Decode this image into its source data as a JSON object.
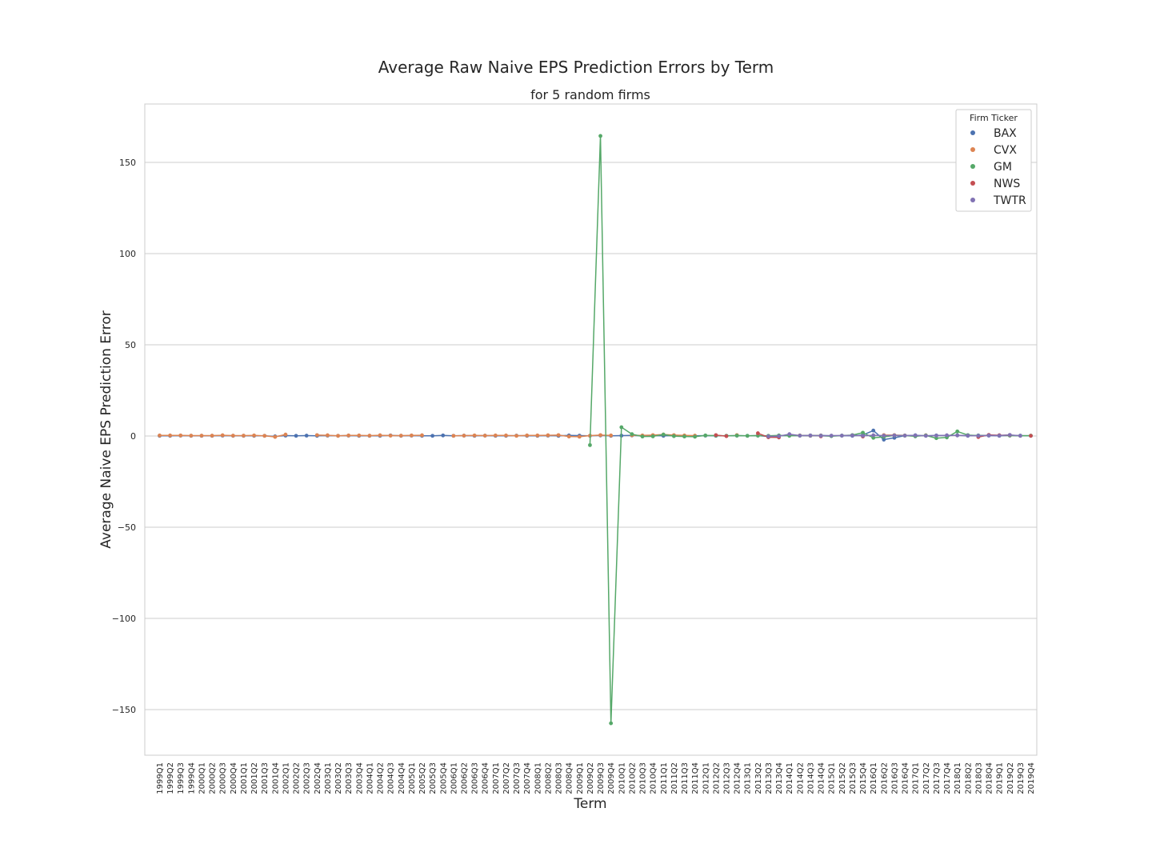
{
  "chart_data": {
    "type": "line",
    "title": "Average Raw Naive EPS Prediction Errors by Term",
    "subtitle": "for 5 random firms",
    "xlabel": "Term",
    "ylabel": "Average Naive EPS Prediction Error",
    "ylim": [
      -175,
      182
    ],
    "yticks": [
      150,
      100,
      50,
      0,
      -50,
      -100,
      -150
    ],
    "ytick_labels": [
      "150",
      "100",
      "50",
      "0",
      "−50",
      "−100",
      "−150"
    ],
    "grid": "horizontal",
    "legend": {
      "title": "Firm Ticker",
      "position": "top-right"
    },
    "categories": [
      "1999Q1",
      "1999Q2",
      "1999Q3",
      "1999Q4",
      "2000Q1",
      "2000Q2",
      "2000Q3",
      "2000Q4",
      "2001Q1",
      "2001Q2",
      "2001Q3",
      "2001Q4",
      "2002Q1",
      "2002Q2",
      "2002Q3",
      "2002Q4",
      "2003Q1",
      "2003Q2",
      "2003Q3",
      "2003Q4",
      "2004Q1",
      "2004Q2",
      "2004Q3",
      "2004Q4",
      "2005Q1",
      "2005Q2",
      "2005Q3",
      "2005Q4",
      "2006Q1",
      "2006Q2",
      "2006Q3",
      "2006Q4",
      "2007Q1",
      "2007Q2",
      "2007Q3",
      "2007Q4",
      "2008Q1",
      "2008Q2",
      "2008Q3",
      "2008Q4",
      "2009Q1",
      "2009Q2",
      "2009Q3",
      "2009Q4",
      "2010Q1",
      "2010Q2",
      "2010Q3",
      "2010Q4",
      "2011Q1",
      "2011Q2",
      "2011Q3",
      "2011Q4",
      "2012Q1",
      "2012Q2",
      "2012Q3",
      "2012Q4",
      "2013Q1",
      "2013Q2",
      "2013Q3",
      "2013Q4",
      "2014Q1",
      "2014Q2",
      "2014Q3",
      "2014Q4",
      "2015Q1",
      "2015Q2",
      "2015Q3",
      "2015Q4",
      "2016Q1",
      "2016Q2",
      "2016Q3",
      "2016Q4",
      "2017Q1",
      "2017Q2",
      "2017Q3",
      "2017Q4",
      "2018Q1",
      "2018Q2",
      "2018Q3",
      "2018Q4",
      "2019Q1",
      "2019Q2",
      "2019Q3",
      "2019Q4"
    ],
    "series": [
      {
        "name": "BAX",
        "color": "#4c72b0",
        "values": [
          0.1,
          0.1,
          0.2,
          0.1,
          0.1,
          0.1,
          0.2,
          0.1,
          0.1,
          0.1,
          0.1,
          -0.2,
          0.2,
          0.1,
          0.2,
          0.1,
          0.2,
          0.1,
          0.2,
          0.1,
          0.1,
          0.1,
          0.3,
          0.1,
          0.2,
          0.1,
          0.1,
          0.3,
          0.1,
          0.2,
          0.1,
          0.2,
          0.1,
          0.1,
          0.2,
          0.1,
          0.1,
          0.2,
          0.1,
          0.3,
          0.2,
          0.1,
          0.3,
          0.1,
          0.2,
          0.3,
          0.1,
          0.2,
          0.1,
          0.2,
          0.1,
          0.1,
          0.2,
          0.1,
          0.1,
          0.2,
          0.1,
          0.2,
          -0.3,
          0.1,
          0.4,
          0.2,
          0.1,
          0.3,
          0.1,
          0.2,
          0.1,
          0.5,
          3.0,
          -2.0,
          -1.0,
          0.2,
          0.4,
          0.1,
          0.3,
          0.2,
          0.4,
          0.1,
          0.3,
          0.2,
          0.1,
          0.3,
          0.2,
          0.1
        ]
      },
      {
        "name": "CVX",
        "color": "#dd8452",
        "values": [
          0.3,
          0.3,
          0.3,
          0.2,
          0.2,
          0.2,
          0.4,
          0.2,
          0.2,
          0.3,
          0.1,
          -0.5,
          0.8,
          null,
          null,
          0.5,
          0.4,
          0.1,
          0.3,
          0.3,
          0.2,
          0.4,
          0.2,
          0.2,
          0.3,
          0.4,
          null,
          null,
          0.1,
          0.2,
          0.3,
          0.2,
          0.3,
          0.3,
          0.1,
          0.3,
          0.3,
          0.4,
          0.5,
          -0.3,
          -0.4,
          0.2,
          0.5,
          0.3,
          null,
          0.4,
          0.3,
          0.5,
          0.8,
          0.5,
          0.3,
          0.2,
          null,
          null,
          null,
          0.5,
          null,
          null,
          null,
          null,
          0.5,
          0.3,
          0.2,
          0.2,
          null,
          null,
          0.4,
          null,
          null,
          0.5,
          0.5,
          0.3,
          null,
          0.4,
          null,
          null,
          null,
          null,
          null,
          0.5,
          null,
          null,
          null,
          null
        ]
      },
      {
        "name": "GM",
        "color": "#55a868",
        "values": [
          null,
          null,
          null,
          null,
          null,
          null,
          null,
          null,
          null,
          null,
          null,
          null,
          null,
          null,
          null,
          null,
          null,
          null,
          null,
          null,
          null,
          null,
          null,
          null,
          null,
          null,
          null,
          null,
          null,
          null,
          null,
          null,
          null,
          null,
          null,
          null,
          null,
          null,
          null,
          null,
          null,
          -5.0,
          164.5,
          -157.5,
          4.8,
          1.0,
          -0.3,
          -0.2,
          0.8,
          -0.1,
          -0.3,
          -0.4,
          0.3,
          0.2,
          0.1,
          0.2,
          0.1,
          0.2,
          0.1,
          0.3,
          0.1,
          0.2,
          0.3,
          0.1,
          -0.1,
          0.2,
          0.5,
          1.8,
          -1.0,
          -0.5,
          0.3,
          0.2,
          -0.2,
          0.3,
          -1.2,
          -0.8,
          2.5,
          0.5,
          0.2,
          0.4,
          0.3,
          0.2,
          0.1,
          0.2
        ]
      },
      {
        "name": "NWS",
        "color": "#c44e52",
        "values": [
          null,
          null,
          null,
          null,
          null,
          null,
          null,
          null,
          null,
          null,
          null,
          null,
          null,
          null,
          null,
          null,
          null,
          null,
          null,
          null,
          null,
          null,
          null,
          null,
          null,
          null,
          null,
          null,
          null,
          null,
          null,
          null,
          null,
          null,
          null,
          null,
          null,
          null,
          null,
          null,
          null,
          null,
          null,
          null,
          null,
          null,
          null,
          null,
          null,
          null,
          null,
          null,
          null,
          0.5,
          -0.1,
          null,
          null,
          1.5,
          -0.7,
          -0.8,
          null,
          null,
          null,
          -0.2,
          null,
          null,
          null,
          -0.3,
          null,
          null,
          null,
          null,
          null,
          null,
          null,
          null,
          null,
          null,
          -0.6,
          0.6,
          0.4,
          0.5,
          null,
          0.1
        ]
      },
      {
        "name": "TWTR",
        "color": "#8172b3",
        "values": [
          null,
          null,
          null,
          null,
          null,
          null,
          null,
          null,
          null,
          null,
          null,
          null,
          null,
          null,
          null,
          null,
          null,
          null,
          null,
          null,
          null,
          null,
          null,
          null,
          null,
          null,
          null,
          null,
          null,
          null,
          null,
          null,
          null,
          null,
          null,
          null,
          null,
          null,
          null,
          null,
          null,
          null,
          null,
          null,
          null,
          null,
          null,
          null,
          null,
          null,
          null,
          null,
          null,
          null,
          null,
          null,
          null,
          null,
          -0.2,
          -0.1,
          1.0,
          0.2,
          0.3,
          0.1,
          0.2,
          0.2,
          0.3,
          0.1,
          0.4,
          0.2,
          0.3,
          0.2,
          0.3,
          0.1,
          0.2,
          0.4,
          0.3,
          0.2,
          0.1,
          0.3,
          0.2,
          0.6,
          0.1,
          null
        ]
      }
    ]
  }
}
